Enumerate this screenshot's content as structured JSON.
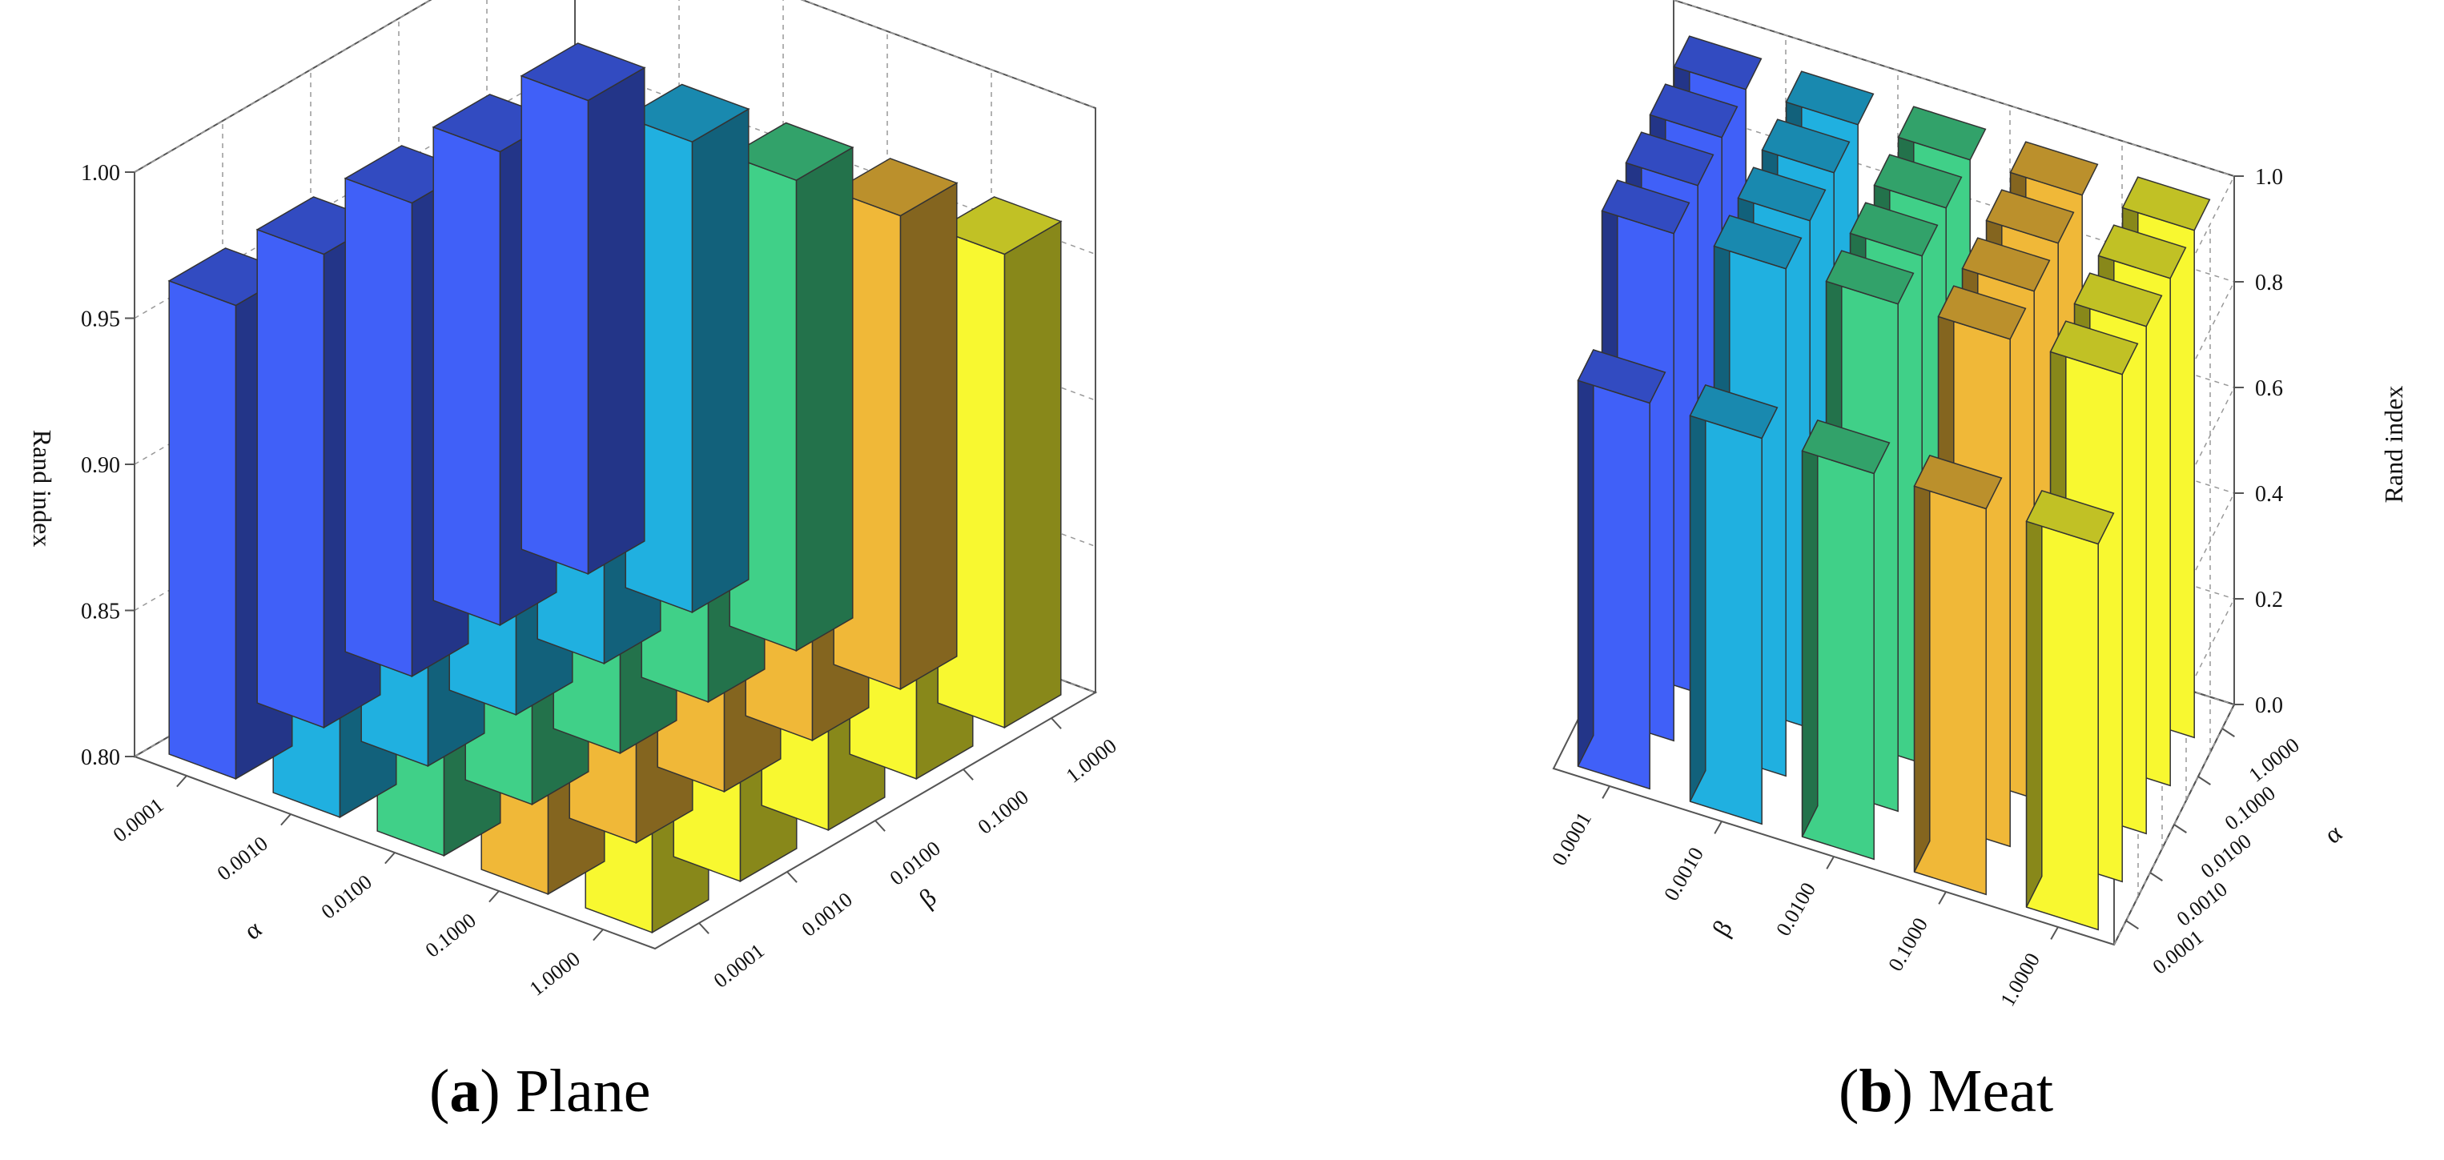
{
  "captions": {
    "a": {
      "letter": "a",
      "text": " Plane"
    },
    "b": {
      "letter": "b",
      "text": " Meat"
    }
  },
  "colors": {
    "blue": "#4060f8",
    "cyan": "#20b0e0",
    "green": "#40d088",
    "orange": "#f0b838",
    "yellow": "#f8f830",
    "frame": "#555555",
    "grid": "#999999"
  },
  "chart_data": [
    {
      "type": "bar3d",
      "panel": "a",
      "zlabel": "Rand index",
      "zlim": [
        0.8,
        1.0
      ],
      "zticks": [
        "0.80",
        "0.85",
        "0.90",
        "0.95",
        "1.00"
      ],
      "alpha_label": "α",
      "beta_label": "β",
      "alpha_ticks": [
        "0.0001",
        "0.0010",
        "0.0100",
        "0.1000",
        "1.0000"
      ],
      "beta_ticks": [
        "0.0001",
        "0.0010",
        "0.0100",
        "0.1000",
        "1.0000"
      ],
      "values": [
        [
          0.962,
          0.962,
          0.962,
          0.962,
          0.962
        ],
        [
          0.961,
          0.961,
          0.961,
          0.961,
          0.961
        ],
        [
          0.961,
          0.961,
          0.961,
          0.961,
          0.961
        ],
        [
          0.962,
          0.962,
          0.962,
          0.962,
          0.962
        ],
        [
          0.962,
          0.962,
          0.962,
          0.962,
          0.962
        ]
      ],
      "row_colors": [
        "blue",
        "cyan",
        "green",
        "orange",
        "yellow"
      ]
    },
    {
      "type": "bar3d",
      "panel": "b",
      "zlabel": "Rand index",
      "zlim": [
        0.0,
        1.0
      ],
      "zticks": [
        "0.0",
        "0.2",
        "0.4",
        "0.6",
        "0.8",
        "1.0"
      ],
      "alpha_label": "α",
      "beta_label": "β",
      "alpha_ticks": [
        "0.0001",
        "0.0010",
        "0.0100",
        "0.1000",
        "1.0000"
      ],
      "beta_ticks": [
        "0.0001",
        "0.0010",
        "0.0100",
        "0.1000",
        "1.0000"
      ],
      "values": [
        [
          0.73,
          0.73,
          0.73,
          0.73,
          0.73
        ],
        [
          0.96,
          0.96,
          0.96,
          0.96,
          0.96
        ],
        [
          0.96,
          0.96,
          0.96,
          0.96,
          0.96
        ],
        [
          0.96,
          0.96,
          0.96,
          0.96,
          0.96
        ],
        [
          0.96,
          0.96,
          0.96,
          0.96,
          0.96
        ]
      ],
      "col_colors": [
        "blue",
        "cyan",
        "green",
        "orange",
        "yellow"
      ]
    }
  ]
}
